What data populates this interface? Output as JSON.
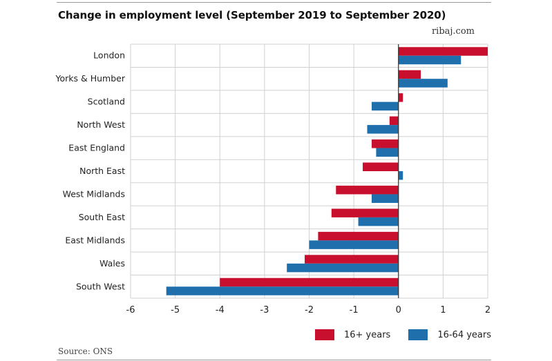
{
  "title": "Change in employment level (September 2019 to September 2020)",
  "brand": "ribaj.com",
  "source": "Source: ONS",
  "colors": {
    "series_16plus": "#c8102e",
    "series_16to64": "#1f6fad",
    "grid": "#d0d0d0",
    "axis": "#333333"
  },
  "chart_data": {
    "type": "bar",
    "orientation": "horizontal",
    "title": "Change in employment level (September 2019 to September 2020)",
    "categories": [
      "London",
      "Yorks & Humber",
      "Scotland",
      "North West",
      "East England",
      "North East",
      "West Midlands",
      "South East",
      "East Midlands",
      "Wales",
      "South West"
    ],
    "series": [
      {
        "name": "16+ years",
        "values": [
          2.0,
          0.5,
          0.1,
          -0.2,
          -0.6,
          -0.8,
          -1.4,
          -1.5,
          -1.8,
          -2.1,
          -4.0
        ]
      },
      {
        "name": "16-64 years",
        "values": [
          1.4,
          1.1,
          -0.6,
          -0.7,
          -0.5,
          0.1,
          -0.6,
          -0.9,
          -2.0,
          -2.5,
          -5.2
        ]
      }
    ],
    "xlim": [
      -6,
      2
    ],
    "xticks": [
      "-6",
      "-5",
      "-4",
      "-3",
      "-2",
      "-1",
      "0",
      "1",
      "2"
    ],
    "grid": true,
    "legend_position": "bottom-right"
  }
}
